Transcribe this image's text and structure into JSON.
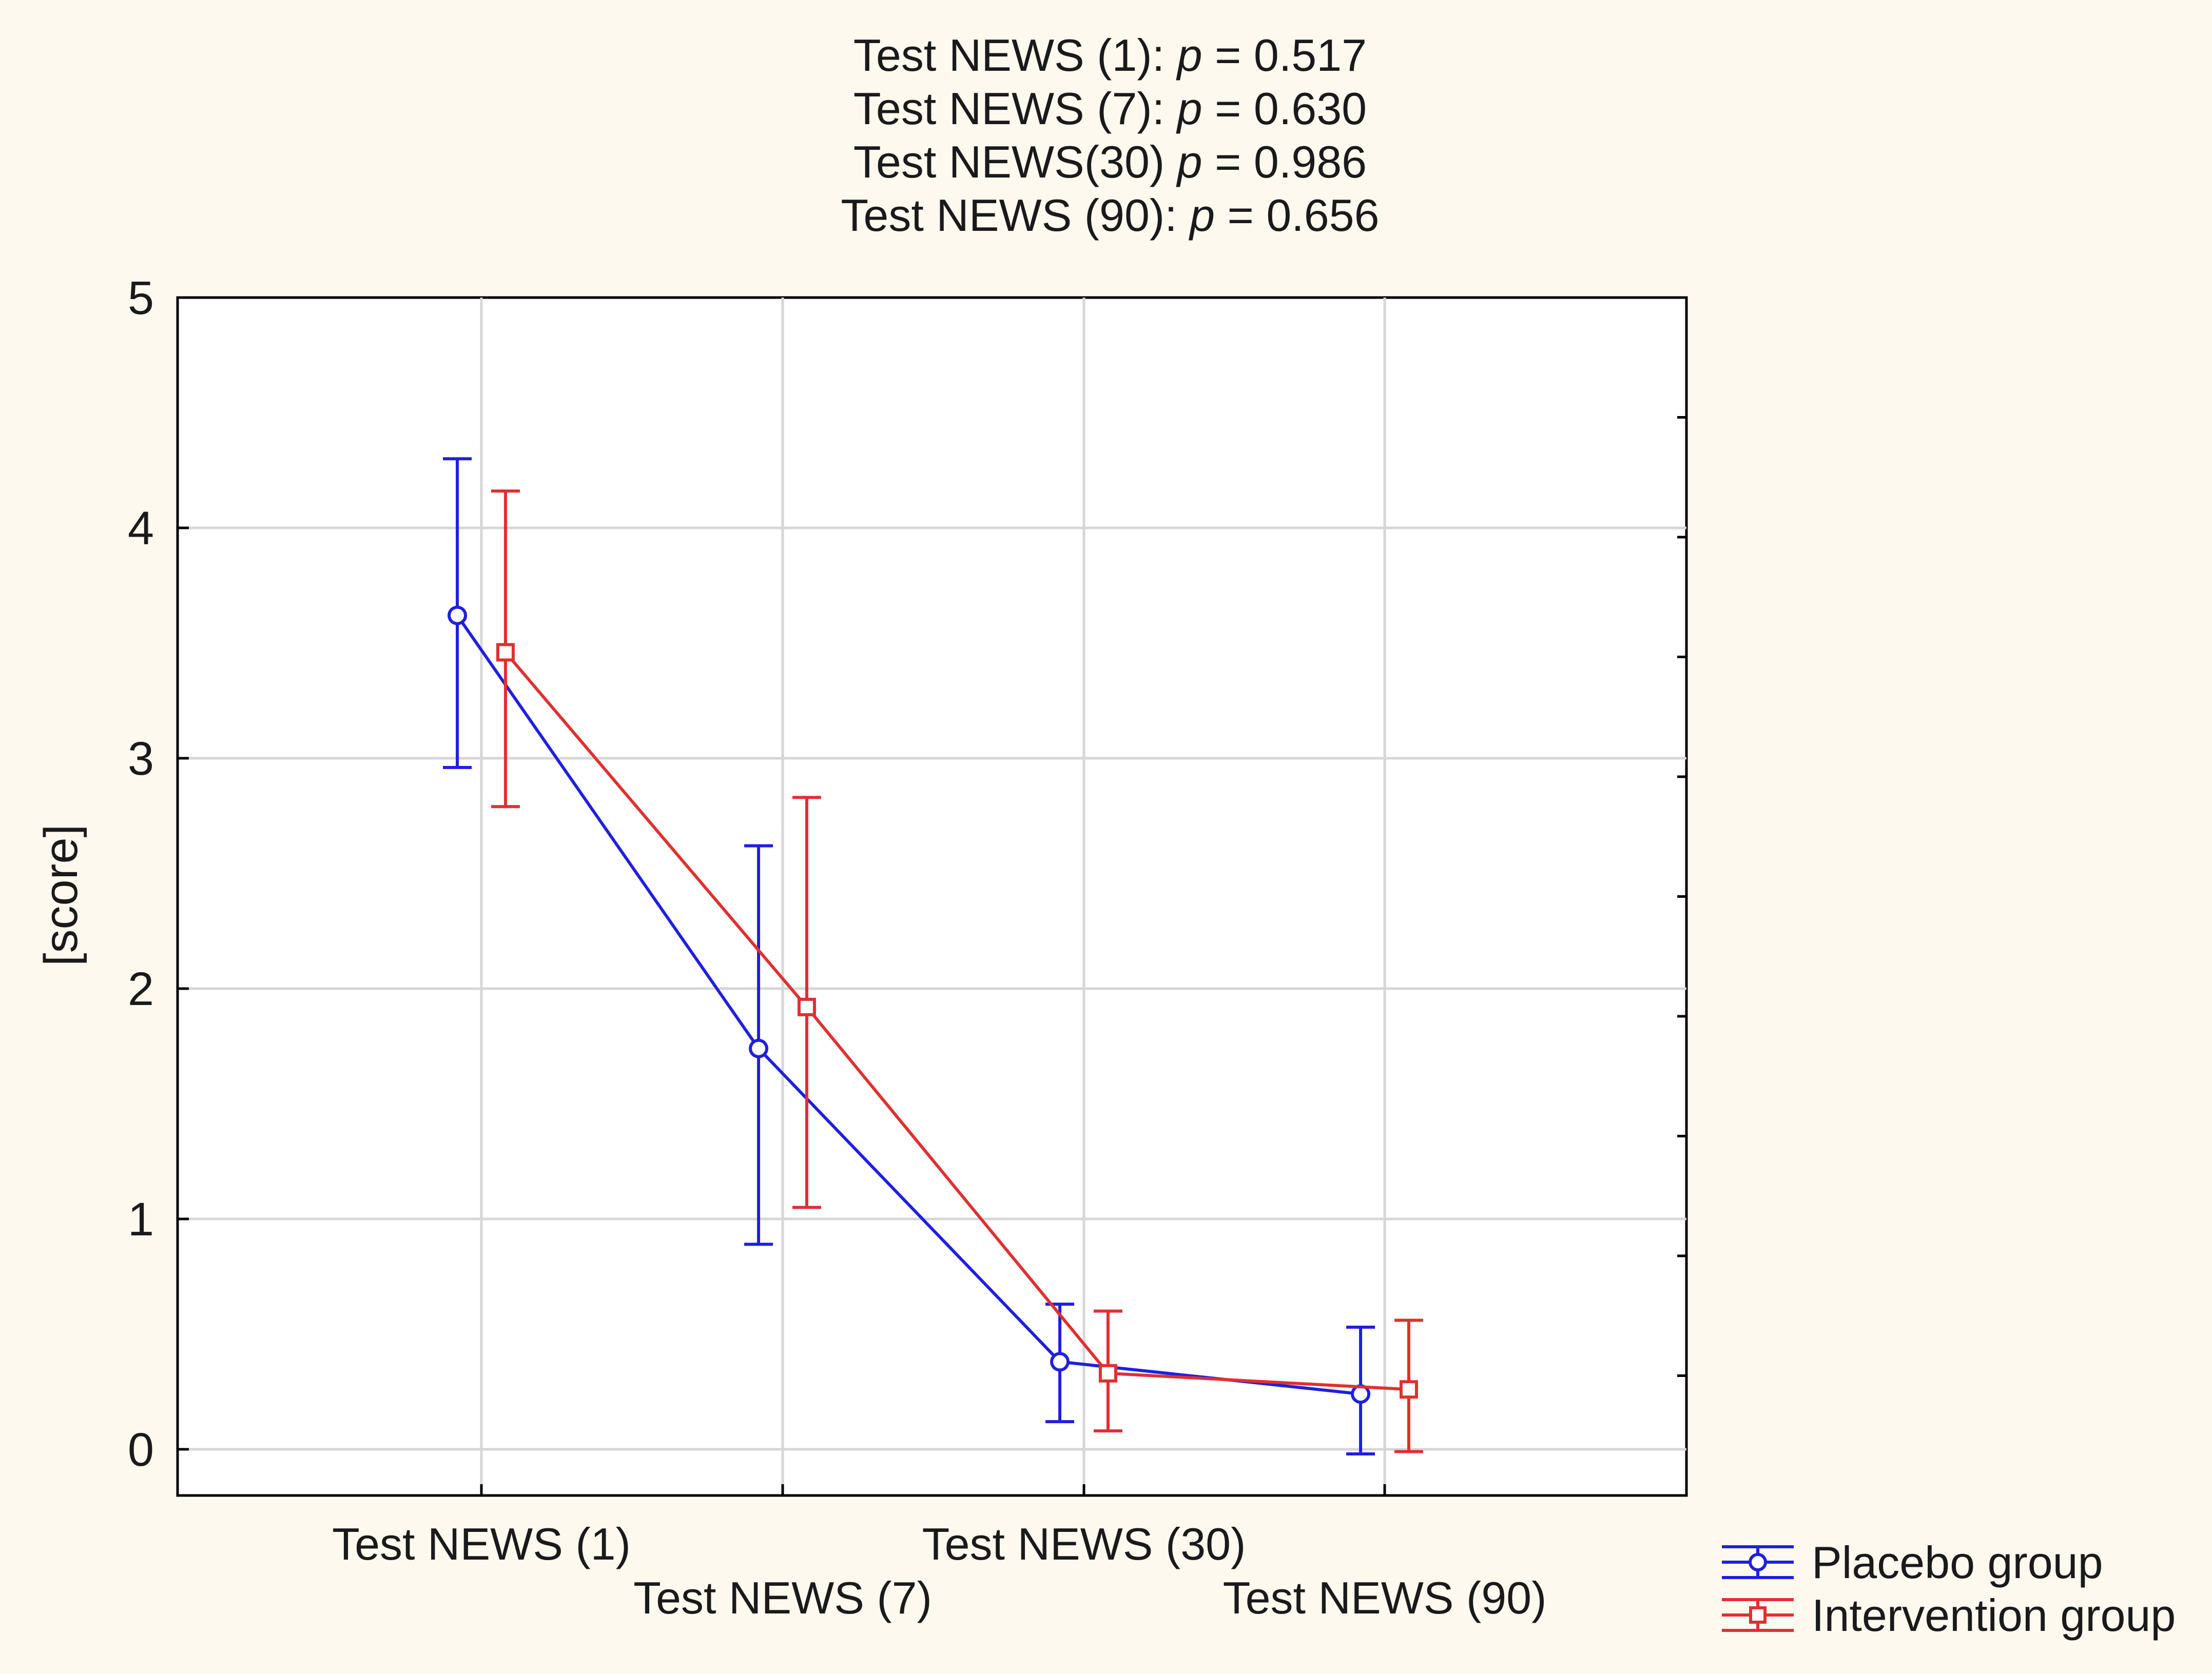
{
  "background_color": "#fdf9ef",
  "chart_data": {
    "type": "line",
    "title_lines": [
      {
        "text": "Test NEWS (1): ",
        "p": "p",
        "value": " = 0.517"
      },
      {
        "text": "Test NEWS (7): ",
        "p": "p",
        "value": " = 0.630"
      },
      {
        "text": "Test NEWS(30) ",
        "p": "p",
        "value": " = 0.986"
      },
      {
        "text": "Test NEWS (90): ",
        "p": "p",
        "value": " = 0.656"
      }
    ],
    "xlabel": "",
    "ylabel": "[score]",
    "ylim": [
      -0.2,
      5
    ],
    "yticks": [
      0,
      1,
      2,
      3,
      4,
      5
    ],
    "grid": true,
    "categories": [
      "Test NEWS (1)",
      "Test NEWS (7)",
      "Test NEWS (30)",
      "Test NEWS (90)"
    ],
    "series": [
      {
        "name": "Placebo group",
        "color": "#1f1fe0",
        "marker": "circle",
        "offset": -0.08,
        "values": [
          3.62,
          1.74,
          0.38,
          0.24
        ],
        "lower": [
          2.96,
          0.89,
          0.12,
          -0.02
        ],
        "upper": [
          4.3,
          2.62,
          0.63,
          0.53
        ]
      },
      {
        "name": "Intervention group",
        "color": "#e03030",
        "marker": "square",
        "offset": 0.08,
        "values": [
          3.46,
          1.92,
          0.33,
          0.26
        ],
        "lower": [
          2.79,
          1.05,
          0.08,
          -0.01
        ],
        "upper": [
          4.16,
          2.83,
          0.6,
          0.56
        ]
      }
    ],
    "legend_position": "bottom-right"
  }
}
